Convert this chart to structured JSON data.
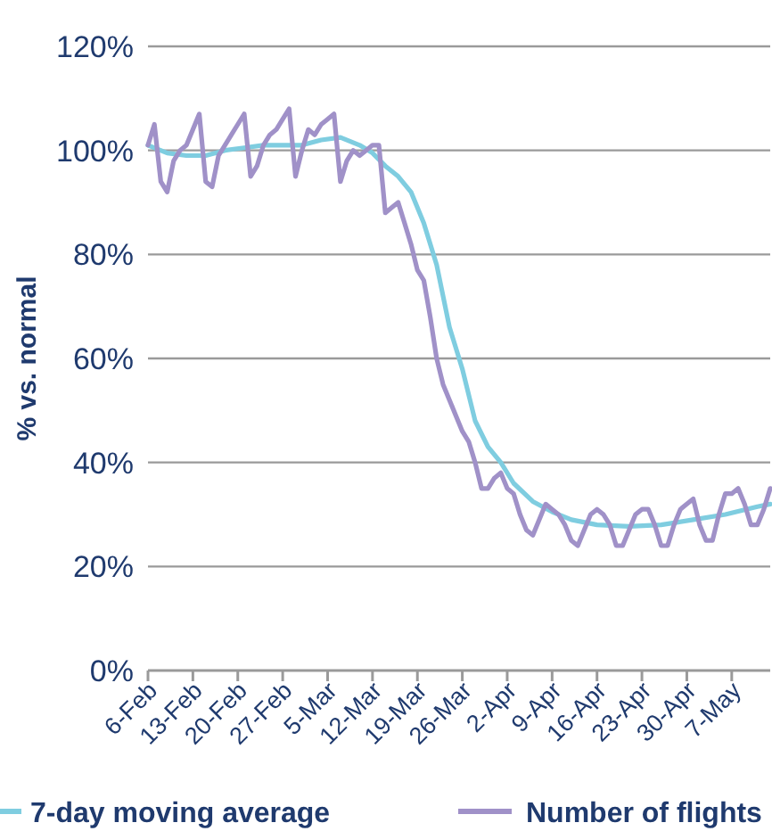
{
  "chart_data": {
    "type": "line",
    "ylabel": "% vs. normal",
    "grid": "y",
    "legend": "bottom",
    "xlim": [
      "--02-06",
      "--05-13"
    ],
    "xticks": [
      {
        "value": "--02-06",
        "label": "6-Feb"
      },
      {
        "value": "--02-13",
        "label": "13-Feb"
      },
      {
        "value": "--02-20",
        "label": "20-Feb"
      },
      {
        "value": "--02-27",
        "label": "27-Feb"
      },
      {
        "value": "--03-05",
        "label": "5-Mar"
      },
      {
        "value": "--03-12",
        "label": "12-Mar"
      },
      {
        "value": "--03-19",
        "label": "19-Mar"
      },
      {
        "value": "--03-26",
        "label": "26-Mar"
      },
      {
        "value": "--04-02",
        "label": "2-Apr"
      },
      {
        "value": "--04-09",
        "label": "9-Apr"
      },
      {
        "value": "--04-16",
        "label": "16-Apr"
      },
      {
        "value": "--04-23",
        "label": "23-Apr"
      },
      {
        "value": "--04-30",
        "label": "30-Apr"
      },
      {
        "value": "--05-07",
        "label": "7-May"
      }
    ],
    "ylim": [
      0,
      120
    ],
    "yticks": [
      {
        "value": 0,
        "label": "0%"
      },
      {
        "value": 20,
        "label": "20%"
      },
      {
        "value": 40,
        "label": "40%"
      },
      {
        "value": 60,
        "label": "60%"
      },
      {
        "value": 80,
        "label": "80%"
      },
      {
        "value": 100,
        "label": "100%"
      },
      {
        "value": 120,
        "label": "120%"
      }
    ],
    "series": [
      {
        "name": "7-day moving average",
        "color": "#7fcde0",
        "x": [
          "--02-06",
          "--02-09",
          "--02-12",
          "--02-15",
          "--02-18",
          "--02-21",
          "--02-24",
          "--02-27",
          "--03-01",
          "--03-04",
          "--03-07",
          "--03-10",
          "--03-12",
          "--03-14",
          "--03-16",
          "--03-18",
          "--03-20",
          "--03-22",
          "--03-24",
          "--03-26",
          "--03-28",
          "--03-30",
          "--04-01",
          "--04-03",
          "--04-06",
          "--04-09",
          "--04-12",
          "--04-16",
          "--04-21",
          "--04-26",
          "--05-01",
          "--05-06",
          "--05-11",
          "--05-13"
        ],
        "values": [
          101,
          99.5,
          99,
          99,
          100,
          100.5,
          101,
          101,
          101,
          102,
          102.5,
          101,
          99.5,
          97,
          95,
          92,
          86,
          78,
          66,
          58,
          48,
          43,
          40,
          36,
          32.5,
          30.5,
          29,
          28,
          27.7,
          28,
          29,
          30,
          31.5,
          32
        ]
      },
      {
        "name": "Number of flights",
        "color": "#a091c8",
        "x": [
          "--02-06",
          "--02-07",
          "--02-08",
          "--02-09",
          "--02-10",
          "--02-11",
          "--02-12",
          "--02-13",
          "--02-14",
          "--02-15",
          "--02-16",
          "--02-17",
          "--02-18",
          "--02-19",
          "--02-20",
          "--02-21",
          "--02-22",
          "--02-23",
          "--02-24",
          "--02-25",
          "--02-26",
          "--02-27",
          "--02-28",
          "--02-29",
          "--03-01",
          "--03-02",
          "--03-03",
          "--03-04",
          "--03-05",
          "--03-06",
          "--03-07",
          "--03-08",
          "--03-09",
          "--03-10",
          "--03-11",
          "--03-12",
          "--03-13",
          "--03-14",
          "--03-15",
          "--03-16",
          "--03-17",
          "--03-18",
          "--03-19",
          "--03-20",
          "--03-21",
          "--03-22",
          "--03-23",
          "--03-24",
          "--03-25",
          "--03-26",
          "--03-27",
          "--03-28",
          "--03-29",
          "--03-30",
          "--03-31",
          "--04-01",
          "--04-02",
          "--04-03",
          "--04-04",
          "--04-05",
          "--04-06",
          "--04-07",
          "--04-08",
          "--04-09",
          "--04-10",
          "--04-11",
          "--04-12",
          "--04-13",
          "--04-14",
          "--04-15",
          "--04-16",
          "--04-17",
          "--04-18",
          "--04-19",
          "--04-20",
          "--04-21",
          "--04-22",
          "--04-23",
          "--04-24",
          "--04-25",
          "--04-26",
          "--04-27",
          "--04-28",
          "--04-29",
          "--04-30",
          "--05-01",
          "--05-02",
          "--05-03",
          "--05-04",
          "--05-05",
          "--05-06",
          "--05-07",
          "--05-08",
          "--05-09",
          "--05-10",
          "--05-11",
          "--05-12",
          "--05-13"
        ],
        "values": [
          101,
          105,
          94,
          92,
          98,
          100,
          101,
          104,
          107,
          94,
          93,
          99,
          101,
          103,
          105,
          107,
          95,
          97,
          101,
          103,
          104,
          106,
          108,
          95,
          100,
          104,
          103,
          105,
          106,
          107,
          94,
          98,
          100,
          99,
          100,
          101,
          101,
          88,
          89,
          90,
          86,
          82,
          77,
          75,
          68,
          60,
          55,
          52,
          49,
          46,
          44,
          40,
          35,
          35,
          37,
          38,
          35,
          34,
          30,
          27,
          26,
          29,
          32,
          31,
          30,
          28,
          25,
          24,
          27,
          30,
          31,
          30,
          28,
          24,
          24,
          27,
          30,
          31,
          31,
          28,
          24,
          24,
          28,
          31,
          32,
          33,
          28,
          25,
          25,
          30,
          34,
          34,
          35,
          32,
          28,
          28,
          31,
          35
        ]
      }
    ]
  }
}
